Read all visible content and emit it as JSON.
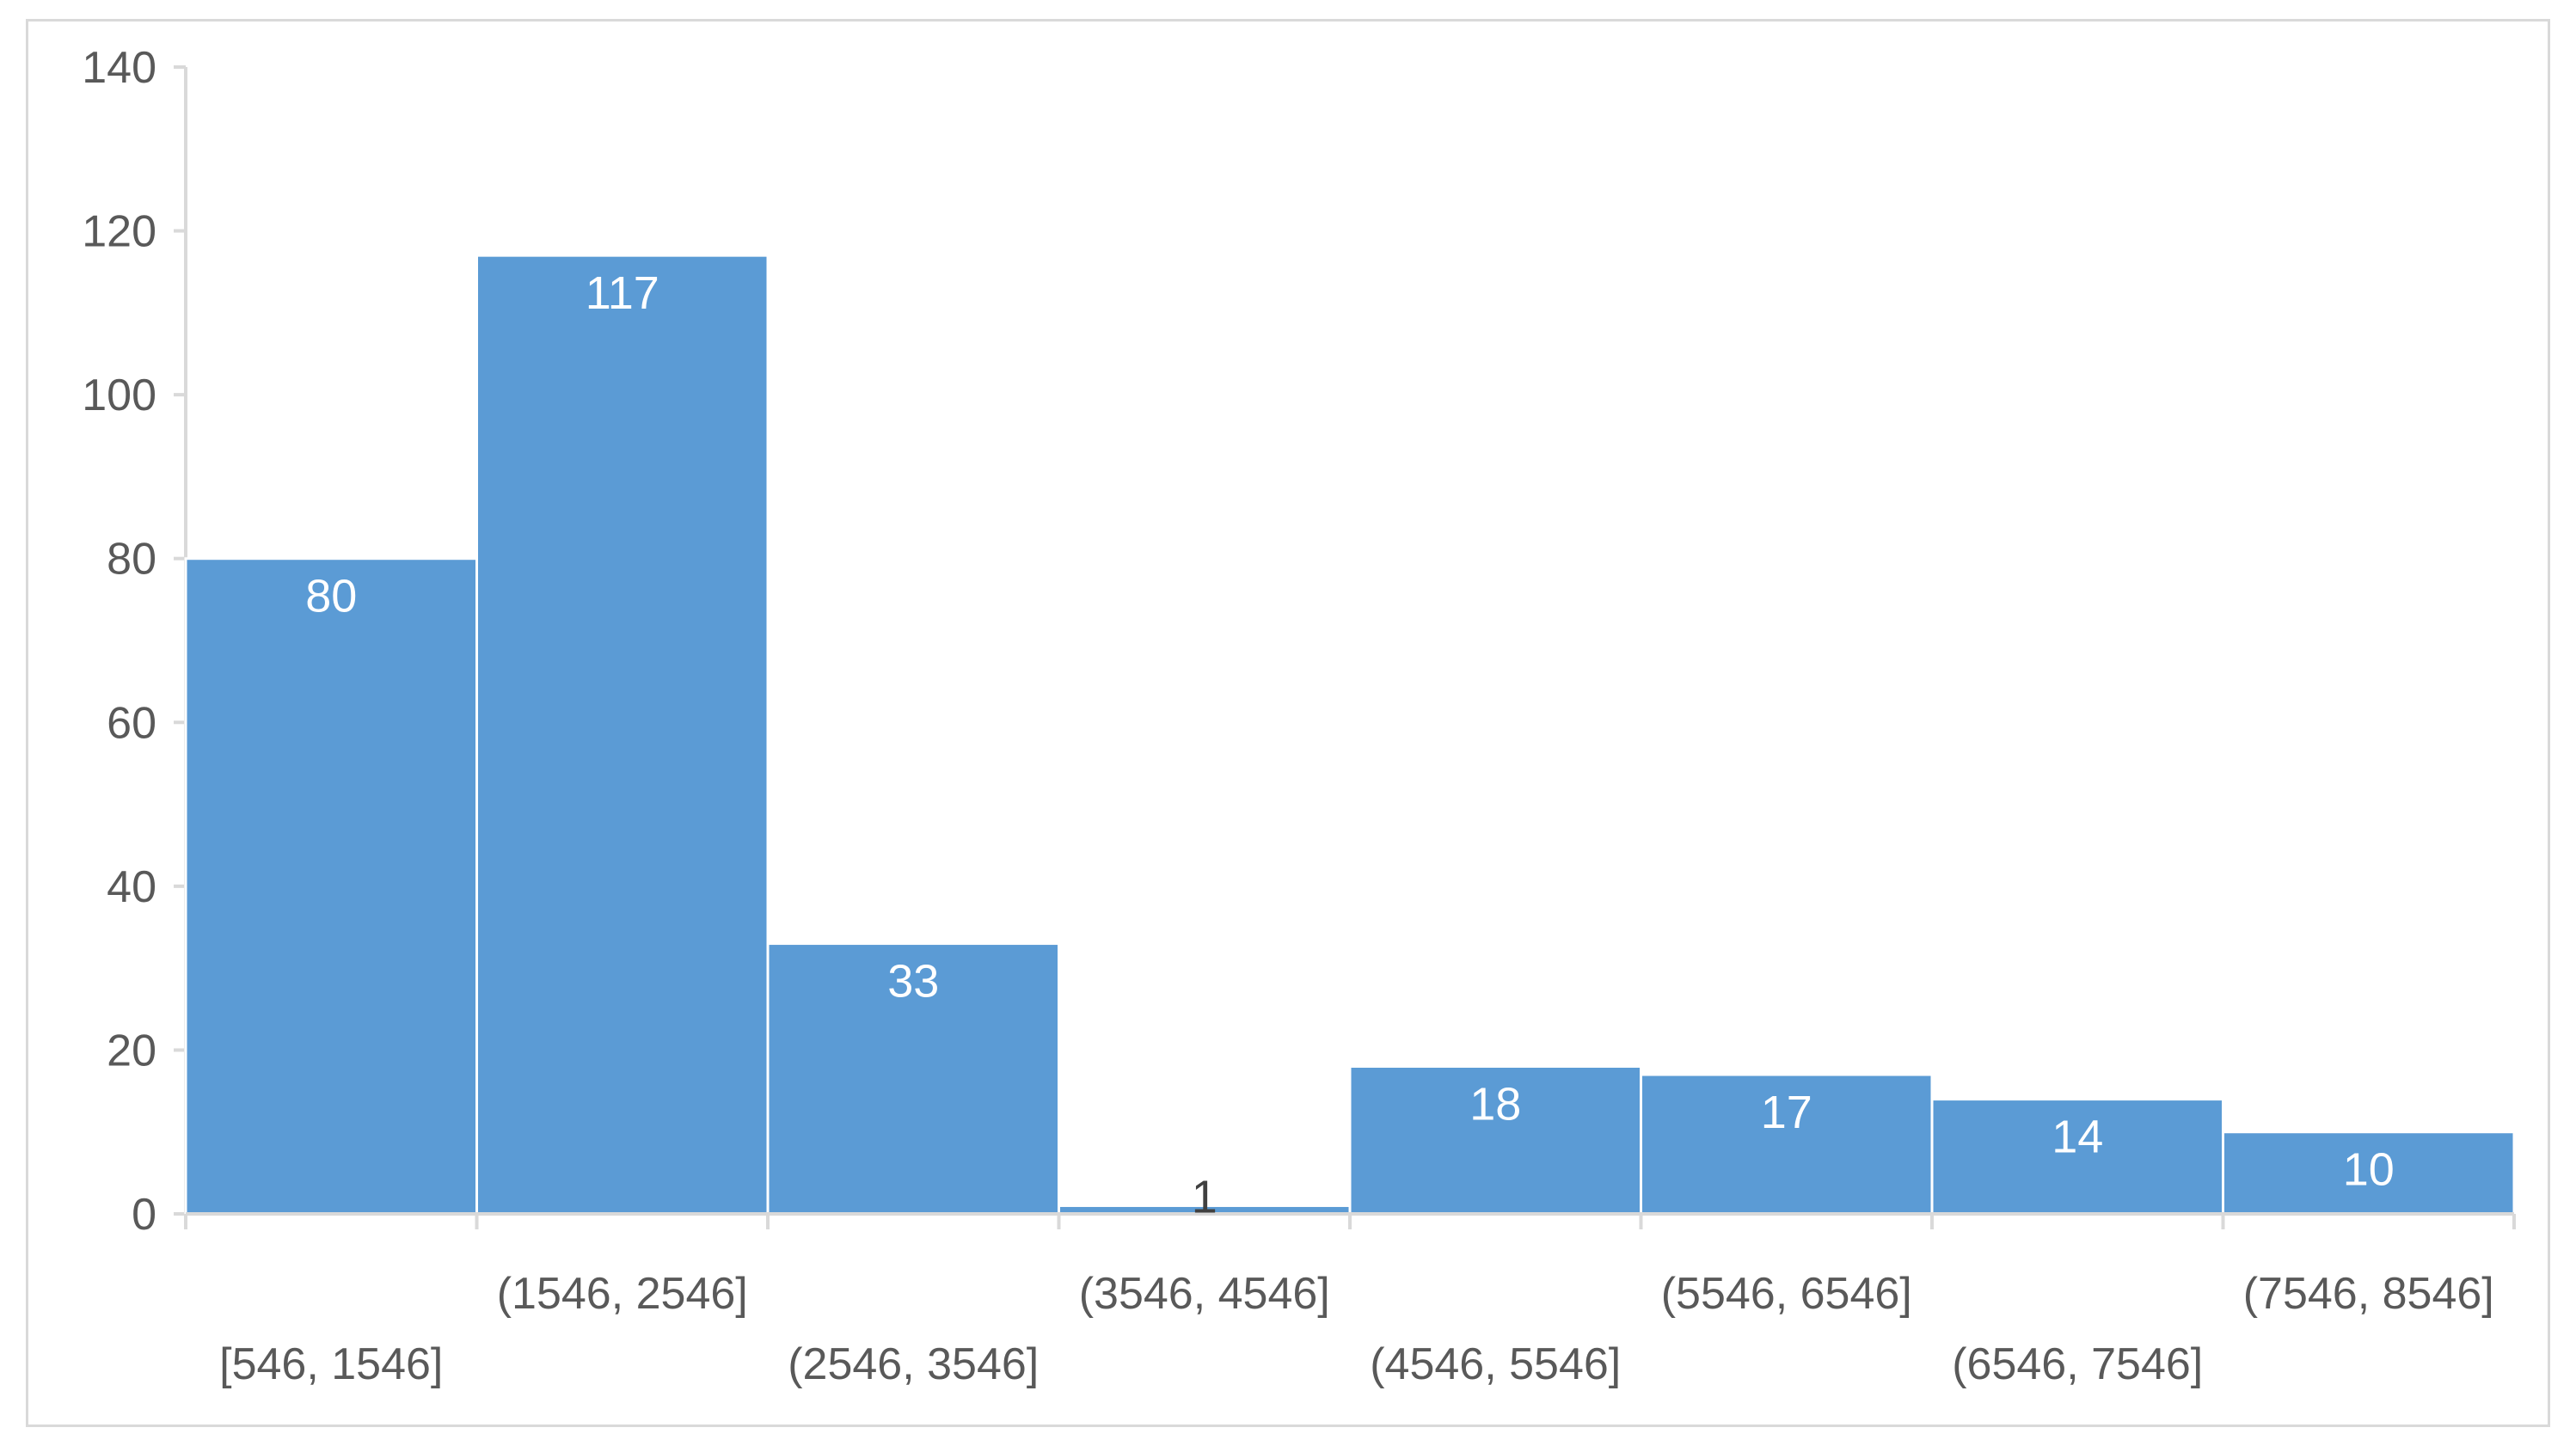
{
  "chart_data": {
    "type": "bar",
    "categories": [
      "[546, 1546]",
      "(1546, 2546]",
      "(2546, 3546]",
      "(3546, 4546]",
      "(4546, 5546]",
      "(5546, 6546]",
      "(6546, 7546]",
      "(7546, 8546]"
    ],
    "values": [
      80,
      117,
      33,
      1,
      18,
      17,
      14,
      10
    ],
    "title": "",
    "xlabel": "",
    "ylabel": "",
    "ylim": [
      0,
      140
    ],
    "y_ticks": [
      0,
      20,
      40,
      60,
      80,
      100,
      120,
      140
    ],
    "grid": false,
    "legend": "none",
    "bar_gap": "none",
    "category_label_layout": "staggered-two-rows",
    "colors": {
      "bar": "#5b9bd5",
      "bar_edge": "#ffffff",
      "axis": "#d9d9d9",
      "tick_text": "#595959",
      "data_label_inside": "#ffffff",
      "data_label_outside": "#404040",
      "frame": "#d9d9d9"
    }
  }
}
